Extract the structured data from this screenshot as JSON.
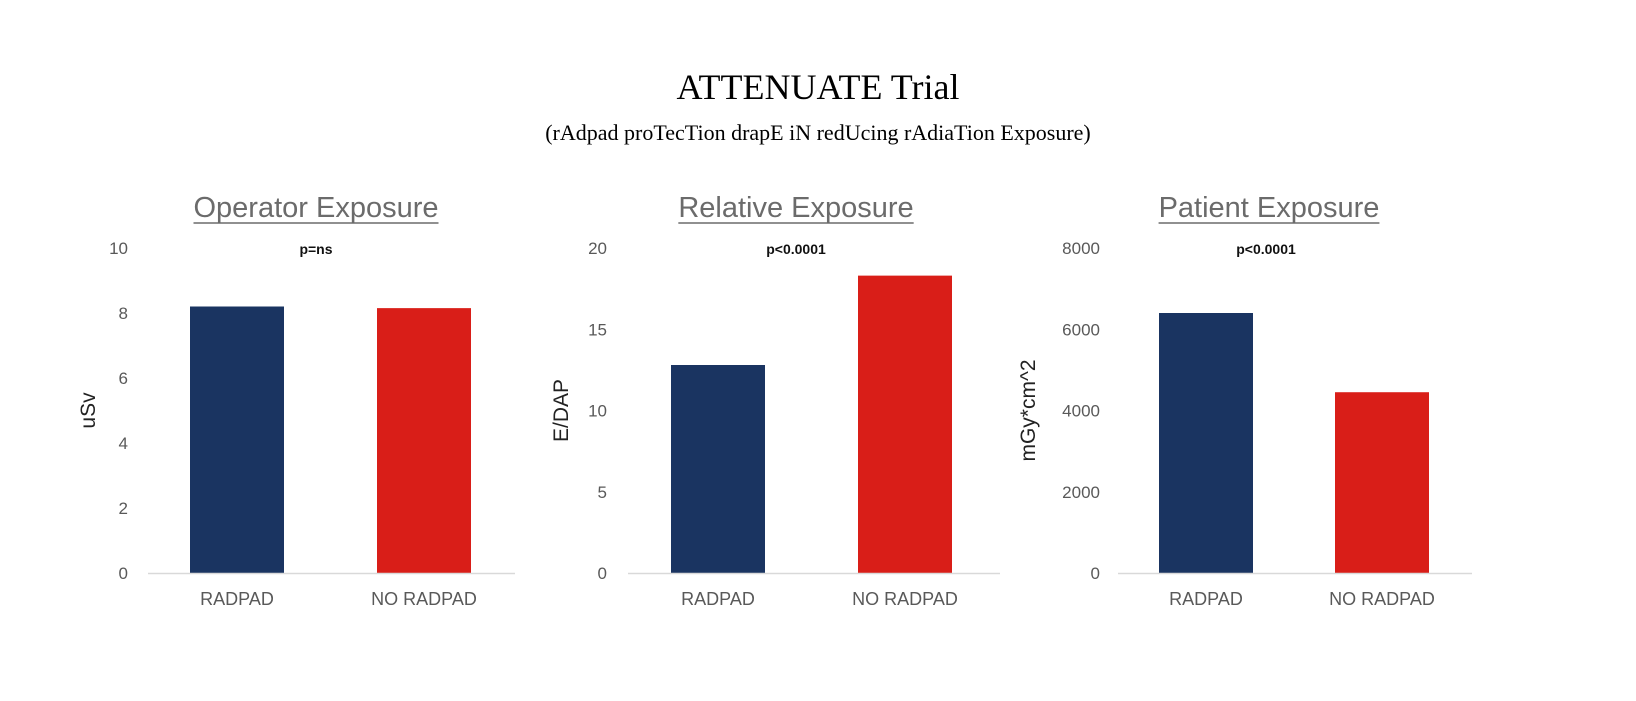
{
  "title": "ATTENUATE Trial",
  "subtitle": "(rAdpad proTecTion drapE iN redUcing rAdiaTion Exposure)",
  "colors": {
    "radpad": "#1a3461",
    "no_radpad": "#d91e18",
    "axis": "#d9d9d9",
    "panel_title": "#6b6b6b"
  },
  "chart_data": [
    {
      "type": "bar",
      "title": "Operator Exposure",
      "annotation": "p=ns",
      "categories": [
        "RADPAD",
        "NO RADPAD"
      ],
      "values": [
        8.2,
        8.15
      ],
      "ylabel": "uSv",
      "ylim": [
        0,
        10
      ],
      "yticks": [
        0,
        2,
        4,
        6,
        8,
        10
      ],
      "grid": false
    },
    {
      "type": "bar",
      "title": "Relative Exposure",
      "annotation": "p<0.0001",
      "categories": [
        "RADPAD",
        "NO RADPAD"
      ],
      "values": [
        12.8,
        18.3
      ],
      "ylabel": "E/DAP",
      "ylim": [
        0,
        20
      ],
      "yticks": [
        0,
        5,
        10,
        15,
        20
      ],
      "grid": false
    },
    {
      "type": "bar",
      "title": "Patient Exposure",
      "annotation": "p<0.0001",
      "categories": [
        "RADPAD",
        "NO RADPAD"
      ],
      "values": [
        6400,
        4450
      ],
      "ylabel": "mGy*cm^2",
      "ylim": [
        0,
        8000
      ],
      "yticks": [
        0,
        2000,
        4000,
        6000,
        8000
      ],
      "grid": false
    }
  ]
}
